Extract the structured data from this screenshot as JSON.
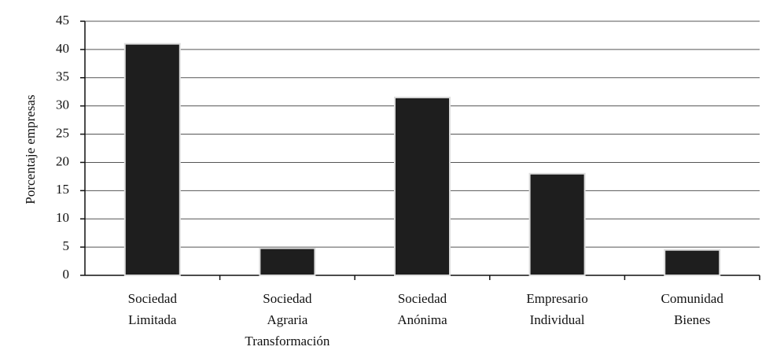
{
  "chart_data": {
    "type": "bar",
    "y_label": "Porcentaje empresas",
    "categories": [
      [
        "Sociedad",
        "Limitada"
      ],
      [
        "Sociedad",
        "Agraria",
        "Transformación"
      ],
      [
        "Sociedad",
        "Anónima"
      ],
      [
        "Empresario",
        "Individual"
      ],
      [
        "Comunidad",
        "Bienes"
      ]
    ],
    "values": [
      41,
      4.8,
      31.5,
      18,
      4.5
    ],
    "color": "#1e1e1e",
    "ylim": [
      0,
      45
    ],
    "yticks": [
      0,
      5,
      10,
      15,
      20,
      25,
      30,
      35,
      40,
      45
    ],
    "grid": true
  }
}
